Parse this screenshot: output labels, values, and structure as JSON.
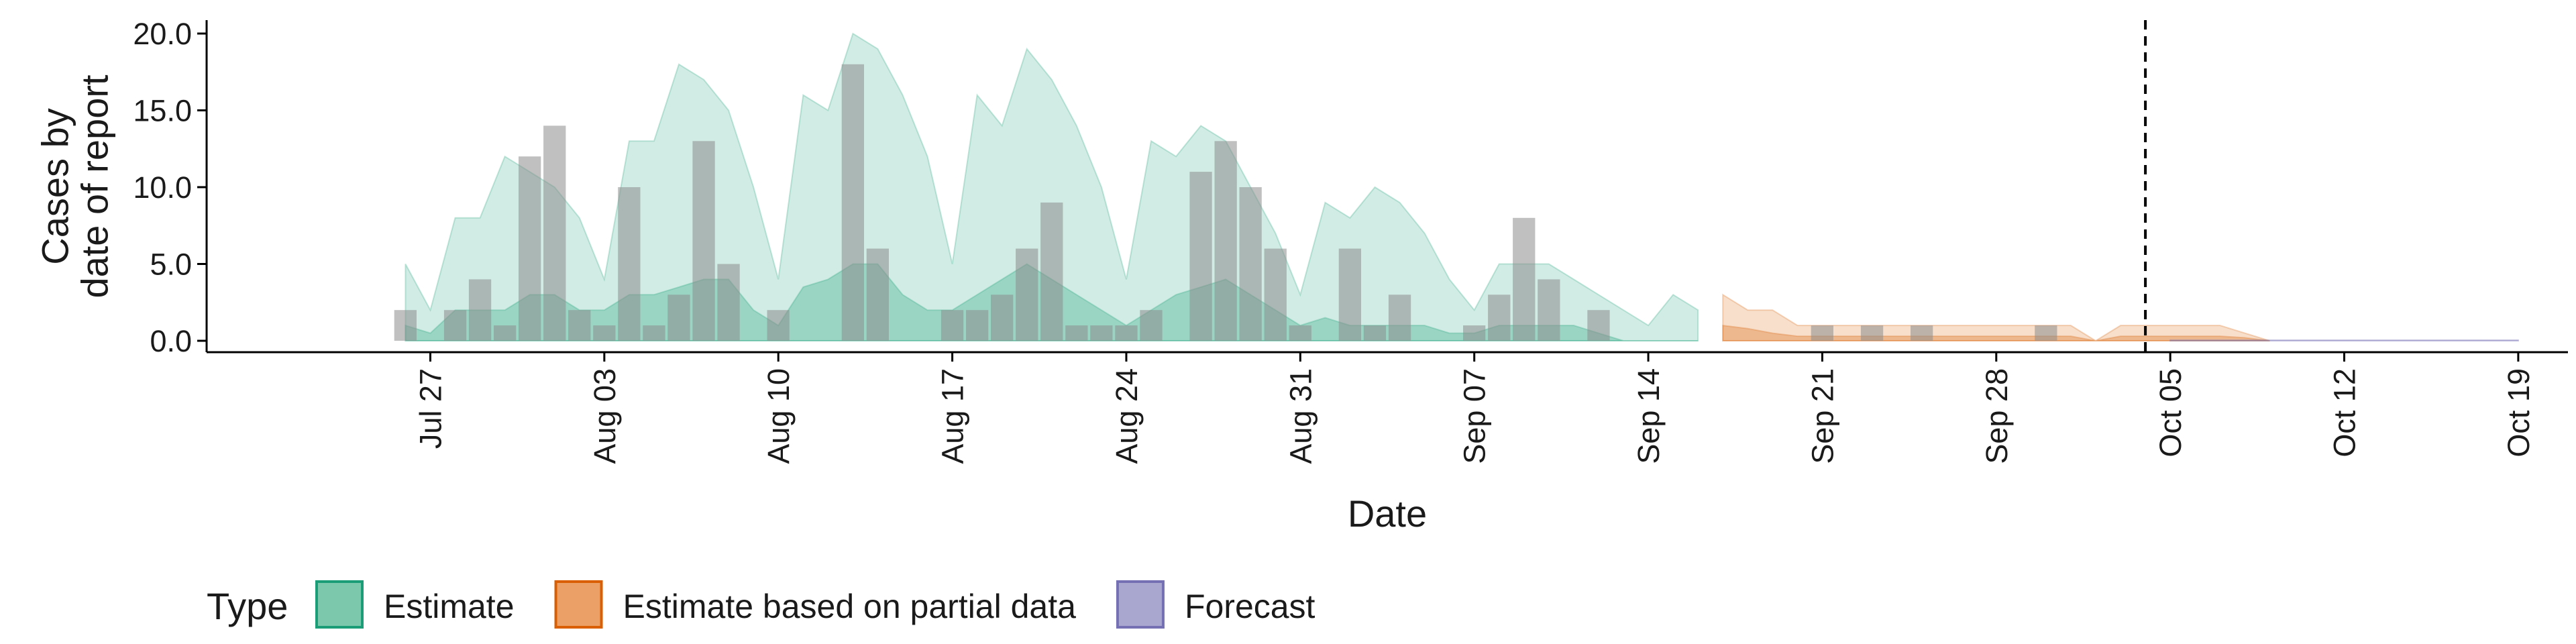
{
  "chart_data": {
    "type": "bar",
    "xlabel": "Date",
    "ylabel": [
      "Cases by",
      "date of report"
    ],
    "ylim": [
      0,
      20
    ],
    "y_ticks": [
      "0.0",
      "5.0",
      "10.0",
      "15.0",
      "20.0"
    ],
    "x_range": [
      "2020-07-18",
      "2020-10-21"
    ],
    "x_ticks": [
      {
        "date": "2020-07-27",
        "label": "Jul 27"
      },
      {
        "date": "2020-08-03",
        "label": "Aug 03"
      },
      {
        "date": "2020-08-10",
        "label": "Aug 10"
      },
      {
        "date": "2020-08-17",
        "label": "Aug 17"
      },
      {
        "date": "2020-08-24",
        "label": "Aug 24"
      },
      {
        "date": "2020-08-31",
        "label": "Aug 31"
      },
      {
        "date": "2020-09-07",
        "label": "Sep 07"
      },
      {
        "date": "2020-09-14",
        "label": "Sep 14"
      },
      {
        "date": "2020-09-21",
        "label": "Sep 21"
      },
      {
        "date": "2020-09-28",
        "label": "Sep 28"
      },
      {
        "date": "2020-10-05",
        "label": "Oct 05"
      },
      {
        "date": "2020-10-12",
        "label": "Oct 12"
      },
      {
        "date": "2020-10-19",
        "label": "Oct 19"
      }
    ],
    "vline_date": "2020-10-04",
    "reported_cases": {
      "dates": [
        "2020-07-26",
        "2020-07-27",
        "2020-07-28",
        "2020-07-29",
        "2020-07-30",
        "2020-07-31",
        "2020-08-01",
        "2020-08-02",
        "2020-08-03",
        "2020-08-04",
        "2020-08-05",
        "2020-08-06",
        "2020-08-07",
        "2020-08-08",
        "2020-08-09",
        "2020-08-10",
        "2020-08-11",
        "2020-08-12",
        "2020-08-13",
        "2020-08-14",
        "2020-08-15",
        "2020-08-16",
        "2020-08-17",
        "2020-08-18",
        "2020-08-19",
        "2020-08-20",
        "2020-08-21",
        "2020-08-22",
        "2020-08-23",
        "2020-08-24",
        "2020-08-25",
        "2020-08-26",
        "2020-08-27",
        "2020-08-28",
        "2020-08-29",
        "2020-08-30",
        "2020-08-31",
        "2020-09-01",
        "2020-09-02",
        "2020-09-03",
        "2020-09-04",
        "2020-09-05",
        "2020-09-06",
        "2020-09-07",
        "2020-09-08",
        "2020-09-09",
        "2020-09-10",
        "2020-09-11",
        "2020-09-12",
        "2020-09-13",
        "2020-09-14",
        "2020-09-15",
        "2020-09-16",
        "2020-09-17",
        "2020-09-18",
        "2020-09-19",
        "2020-09-20",
        "2020-09-21",
        "2020-09-22",
        "2020-09-23",
        "2020-09-24",
        "2020-09-25",
        "2020-09-26",
        "2020-09-27",
        "2020-09-28",
        "2020-09-29",
        "2020-09-30",
        "2020-10-01",
        "2020-10-02",
        "2020-10-03"
      ],
      "values": [
        2,
        0,
        2,
        4,
        1,
        12,
        14,
        2,
        1,
        10,
        1,
        3,
        13,
        5,
        0,
        2,
        0,
        0,
        18,
        6,
        0,
        0,
        2,
        2,
        3,
        6,
        9,
        1,
        1,
        1,
        2,
        0,
        11,
        13,
        10,
        6,
        1,
        0,
        6,
        1,
        3,
        0,
        0,
        1,
        3,
        8,
        4,
        0,
        2,
        0,
        0,
        0,
        0,
        0,
        0,
        0,
        0,
        1,
        0,
        1,
        0,
        1,
        0,
        0,
        0,
        0,
        1,
        0,
        0,
        0
      ]
    },
    "ribbons": [
      {
        "type": "Estimate",
        "start": "2020-07-26",
        "outer_upper": [
          5,
          2,
          8,
          8,
          12,
          11,
          10,
          8,
          4,
          13,
          13,
          18,
          17,
          15,
          10,
          4,
          16,
          15,
          20,
          19,
          16,
          12,
          5,
          16,
          14,
          19,
          17,
          14,
          10,
          4,
          13,
          12,
          14,
          13,
          10,
          7,
          3,
          9,
          8,
          10,
          9,
          7,
          4,
          2,
          5,
          5,
          5,
          4,
          3,
          2,
          1,
          3,
          2
        ],
        "outer_lower": [
          0,
          0,
          0,
          0,
          0,
          0,
          0,
          0,
          0,
          0,
          0,
          0,
          0,
          0,
          0,
          0,
          0,
          0,
          0,
          0,
          0,
          0,
          0,
          0,
          0,
          0,
          0,
          0,
          0,
          0,
          0,
          0,
          0,
          0,
          0,
          0,
          0,
          0,
          0,
          0,
          0,
          0,
          0,
          0,
          0,
          0,
          0,
          0,
          0,
          0,
          0,
          0,
          0
        ],
        "inner_upper": [
          1,
          0.5,
          2,
          2,
          2,
          3,
          3,
          2,
          2,
          3,
          3,
          3.5,
          4,
          4,
          2,
          1,
          3.5,
          4,
          5,
          5,
          3,
          2,
          2,
          3,
          4,
          5,
          4,
          3,
          2,
          1,
          2,
          3,
          3.5,
          4,
          3,
          2,
          1,
          1.5,
          1,
          1,
          1,
          1,
          0.5,
          0.5,
          1,
          1,
          1,
          1,
          0.5,
          0,
          0,
          0,
          0
        ],
        "inner_lower": [
          0,
          0,
          0,
          0,
          0,
          0,
          0,
          0,
          0,
          0,
          0,
          0,
          0,
          0,
          0,
          0,
          0,
          0,
          0,
          0,
          0,
          0,
          0,
          0,
          0,
          0,
          0,
          0,
          0,
          0,
          0,
          0,
          0,
          0,
          0,
          0,
          0,
          0,
          0,
          0,
          0,
          0,
          0,
          0,
          0,
          0,
          0,
          0,
          0,
          0,
          0,
          0,
          0
        ]
      },
      {
        "type": "Estimate based on partial data",
        "start": "2020-09-17",
        "outer_upper": [
          3,
          2,
          2,
          1,
          1,
          1,
          1,
          1,
          1,
          1,
          1,
          1,
          1,
          1,
          1,
          0,
          1,
          1,
          1,
          1,
          1,
          0.5,
          0
        ],
        "outer_lower": [
          0,
          0,
          0,
          0,
          0,
          0,
          0,
          0,
          0,
          0,
          0,
          0,
          0,
          0,
          0,
          0,
          0,
          0,
          0,
          0,
          0,
          0,
          0
        ],
        "inner_upper": [
          1,
          0.8,
          0.5,
          0.3,
          0.3,
          0.3,
          0.3,
          0.3,
          0.3,
          0.3,
          0.3,
          0.3,
          0.3,
          0.3,
          0.3,
          0,
          0.3,
          0.3,
          0.3,
          0.3,
          0.3,
          0.2,
          0
        ],
        "inner_lower": [
          0,
          0,
          0,
          0,
          0,
          0,
          0,
          0,
          0,
          0,
          0,
          0,
          0,
          0,
          0,
          0,
          0,
          0,
          0,
          0,
          0,
          0,
          0
        ]
      },
      {
        "type": "Forecast",
        "start": "2020-10-05",
        "outer_upper": [
          0.05,
          0.05,
          0.05,
          0.05,
          0.05,
          0.05,
          0.05,
          0.05,
          0.05,
          0.05,
          0.05,
          0.05,
          0.05,
          0.05,
          0.05
        ],
        "outer_lower": [
          0,
          0,
          0,
          0,
          0,
          0,
          0,
          0,
          0,
          0,
          0,
          0,
          0,
          0,
          0
        ],
        "inner_upper": [
          0.02,
          0.02,
          0.02,
          0.02,
          0.02,
          0.02,
          0.02,
          0.02,
          0.02,
          0.02,
          0.02,
          0.02,
          0.02,
          0.02,
          0.02
        ],
        "inner_lower": [
          0,
          0,
          0,
          0,
          0,
          0,
          0,
          0,
          0,
          0,
          0,
          0,
          0,
          0,
          0
        ]
      }
    ],
    "legend": {
      "title": "Type",
      "position": "bottom",
      "items": [
        {
          "label": "Estimate",
          "fill": "#7cc8ac",
          "stroke": "#1b9e77"
        },
        {
          "label": "Estimate based on partial data",
          "fill": "#eaa067",
          "stroke": "#d95f02"
        },
        {
          "label": "Forecast",
          "fill": "#a9a6d0",
          "stroke": "#7570b3"
        }
      ]
    },
    "colors": {
      "Estimate": "#1b9e77",
      "Estimate based on partial data": "#d95f02",
      "Forecast": "#7570b3",
      "bar": "#8c8c8c"
    }
  }
}
